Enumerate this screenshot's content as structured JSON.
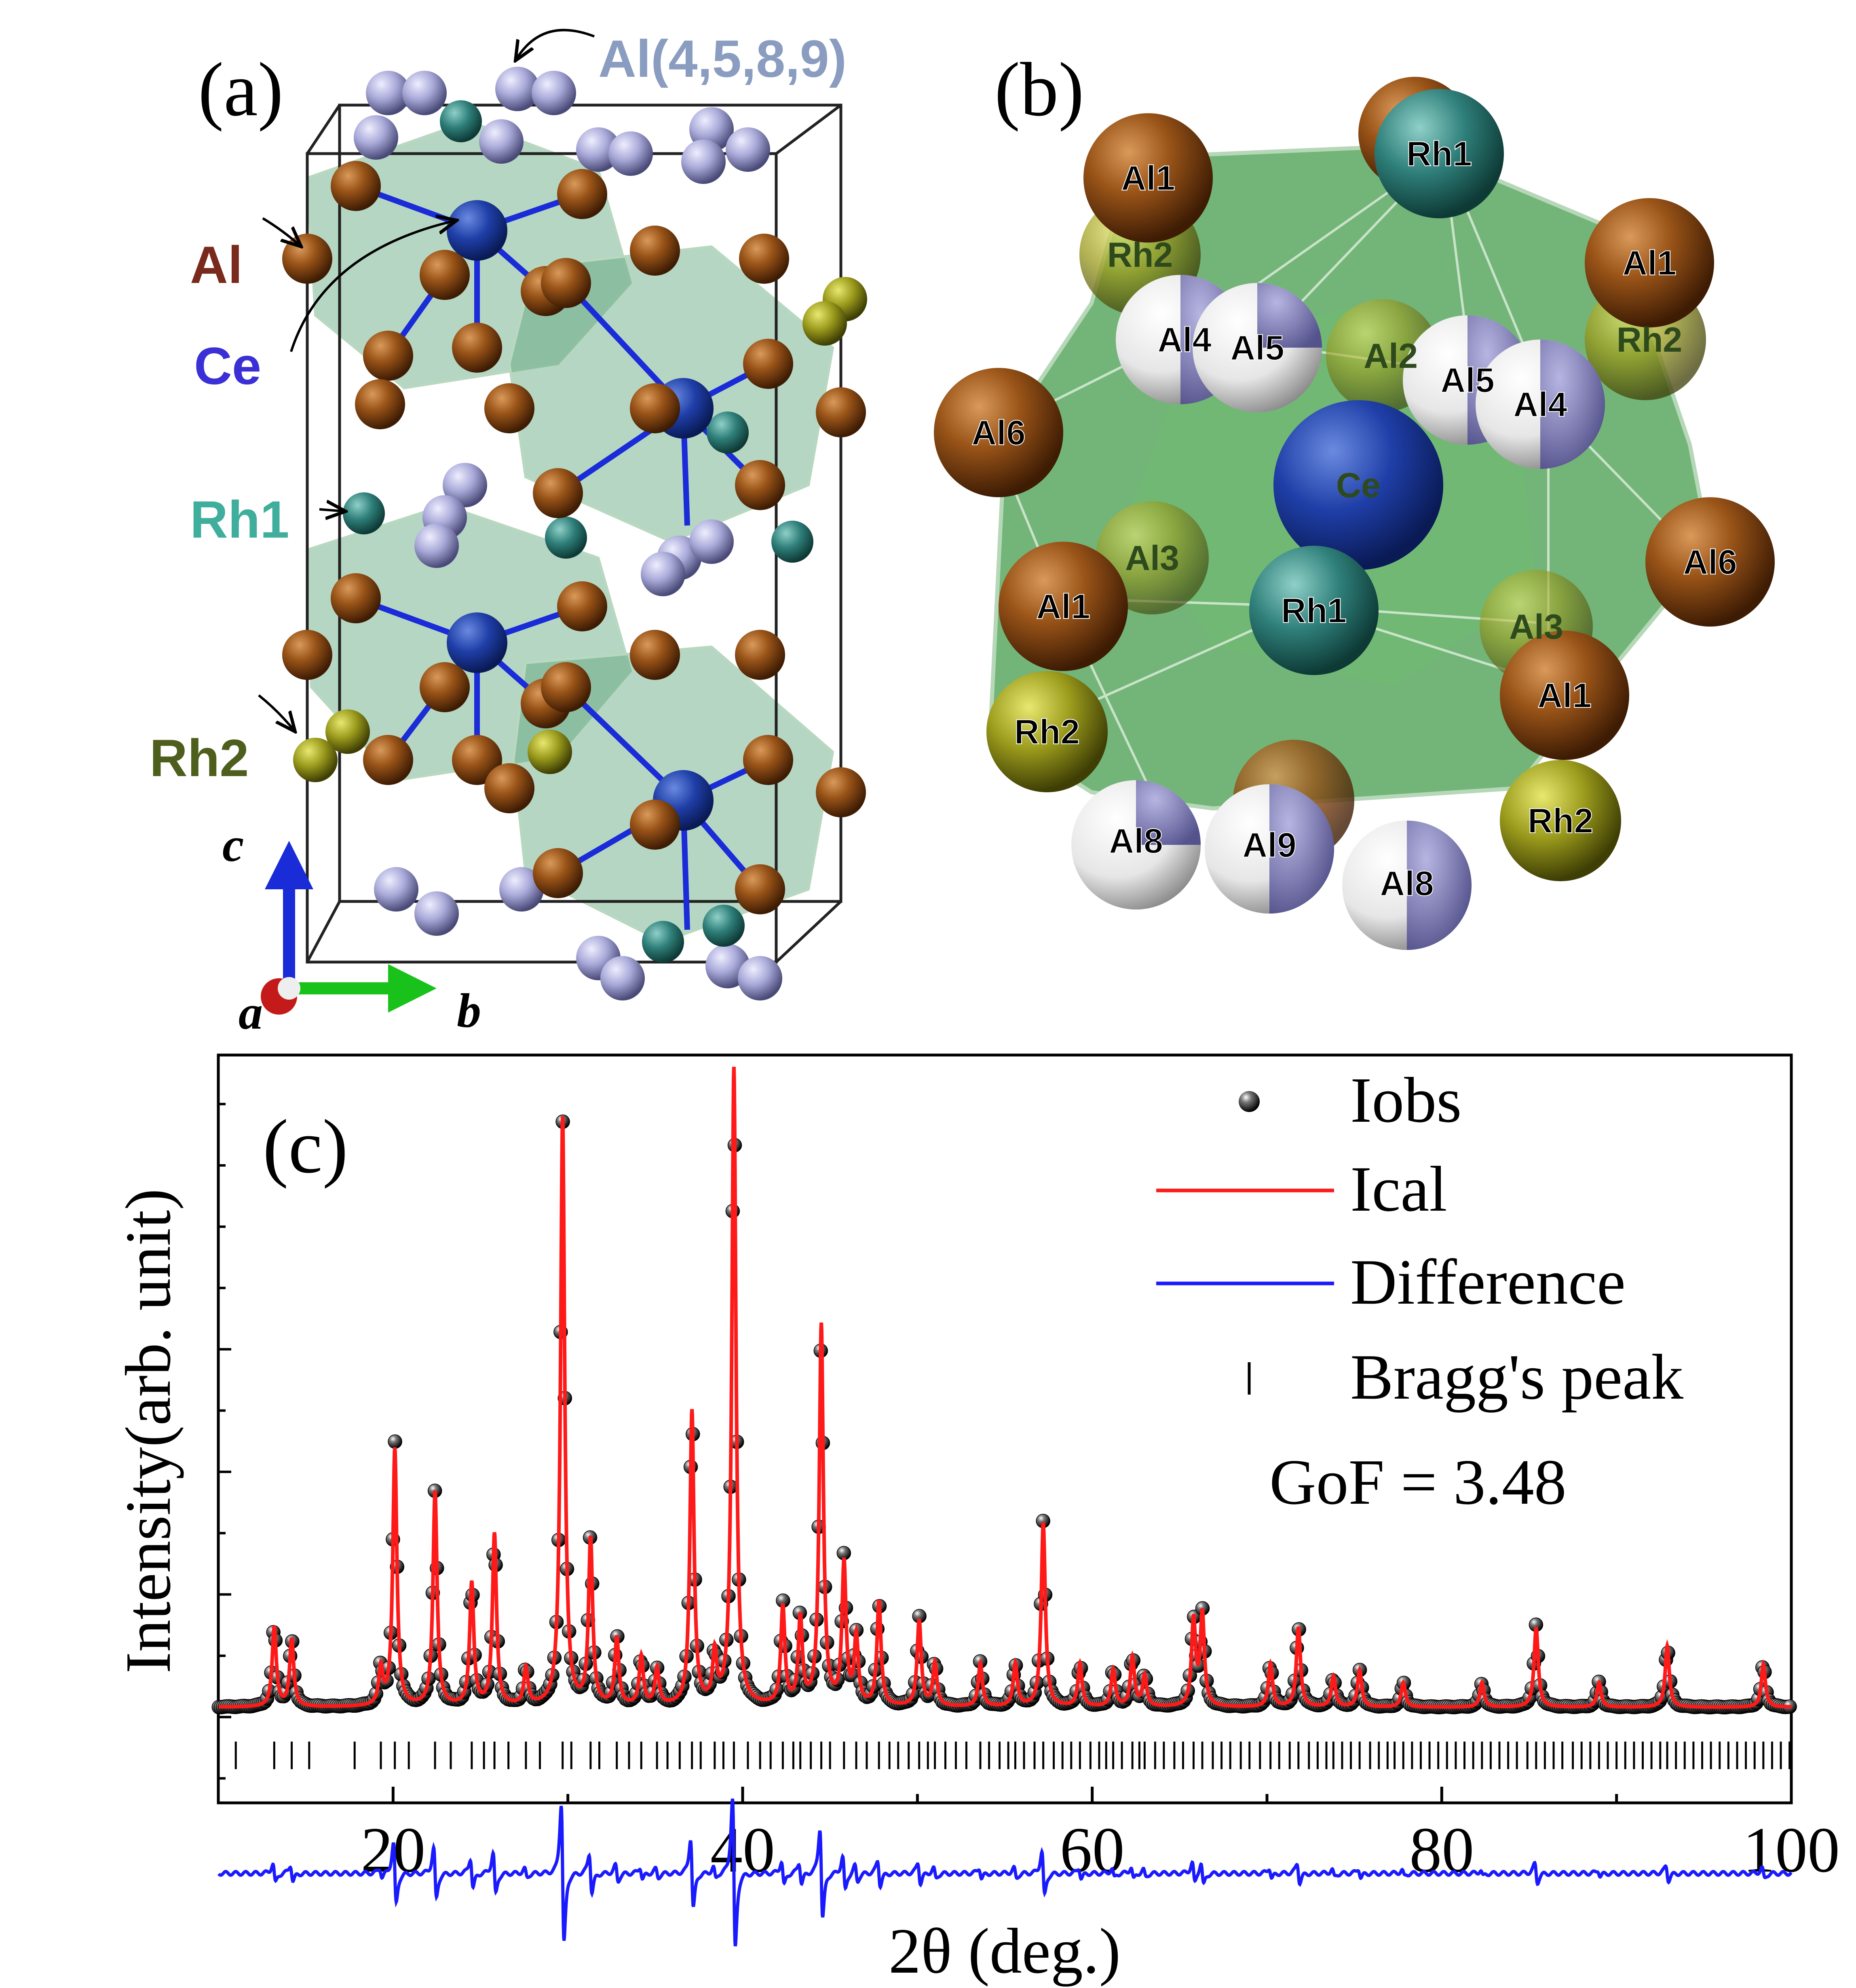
{
  "panel_a": {
    "label": "(a)",
    "species": [
      {
        "key": "al",
        "label": "Al",
        "color": "#7a2a1c"
      },
      {
        "key": "ce",
        "label": "Ce",
        "color": "#3b2fd6"
      },
      {
        "key": "rh1",
        "label": "Rh1",
        "color": "#3fae9c"
      },
      {
        "key": "rh2",
        "label": "Rh2",
        "color": "#4e5e1c"
      },
      {
        "key": "al4589",
        "label": "Al(4,5,8,9)",
        "color": "#8a9cc0"
      }
    ],
    "axes": {
      "c": "c",
      "b": "b",
      "a": "a"
    },
    "colors": {
      "al_atom": "#8b4a14",
      "ce_atom": "#1f3fa8",
      "rh1_atom": "#2f7f7a",
      "rh2_atom": "#9a9a1c",
      "al_mix_atom": "#a8a8d8",
      "polyhedron": "#5aa57a"
    }
  },
  "panel_b": {
    "label": "(b)",
    "atoms": [
      "Al1",
      "Rh1",
      "Rh2",
      "Al1",
      "Al4",
      "Al5",
      "Al2",
      "Al5",
      "Al4",
      "Rh2",
      "Al6",
      "Ce",
      "Al3",
      "Al6",
      "Al1",
      "Rh1",
      "Al3",
      "Al1",
      "Rh2",
      "Al8",
      "Al9",
      "Al8",
      "Rh2"
    ],
    "colors": {
      "al": "#8b4a14",
      "rh1": "#2f7f7a",
      "rh2": "#8f8f1c",
      "ce": "#1f3fa8",
      "mixed_white": "#f2f2f2",
      "mixed_blue": "#7a78b8",
      "cage": "#5aa860"
    }
  },
  "chart_data": {
    "type": "line",
    "panel_label": "(c)",
    "title": "",
    "xlabel": "2θ (deg.)",
    "ylabel": "Intensity(arb. unit)",
    "xlim": [
      10,
      100
    ],
    "ylim": [
      -0.14,
      1.08
    ],
    "x_ticks": [
      20,
      40,
      60,
      80,
      100
    ],
    "legend_position": "top-right",
    "legend": [
      "Iobs",
      "Ical",
      "Difference",
      "Bragg's peak"
    ],
    "annotation": "GoF = 3.48",
    "series": [
      {
        "name": "Iobs",
        "style": "black spheres",
        "color": "#111111"
      },
      {
        "name": "Ical",
        "style": "line",
        "color": "#ff1a1a"
      },
      {
        "name": "Difference",
        "style": "line",
        "color": "#1a1aff",
        "offset": -0.255
      },
      {
        "name": "Bragg's peak",
        "style": "ticks",
        "color": "#000000"
      }
    ],
    "background": 0.016,
    "peaks": [
      {
        "x": 13.2,
        "h": 0.13
      },
      {
        "x": 14.2,
        "h": 0.11
      },
      {
        "x": 19.3,
        "h": 0.06
      },
      {
        "x": 20.1,
        "h": 0.42
      },
      {
        "x": 22.4,
        "h": 0.35
      },
      {
        "x": 24.5,
        "h": 0.2
      },
      {
        "x": 25.8,
        "h": 0.28
      },
      {
        "x": 27.6,
        "h": 0.06
      },
      {
        "x": 29.7,
        "h": 0.96
      },
      {
        "x": 31.3,
        "h": 0.27
      },
      {
        "x": 32.8,
        "h": 0.11
      },
      {
        "x": 34.2,
        "h": 0.08
      },
      {
        "x": 35.1,
        "h": 0.06
      },
      {
        "x": 37.1,
        "h": 0.48
      },
      {
        "x": 38.4,
        "h": 0.08
      },
      {
        "x": 39.5,
        "h": 1.04
      },
      {
        "x": 42.3,
        "h": 0.16
      },
      {
        "x": 43.3,
        "h": 0.14
      },
      {
        "x": 44.5,
        "h": 0.62
      },
      {
        "x": 45.8,
        "h": 0.23
      },
      {
        "x": 46.5,
        "h": 0.11
      },
      {
        "x": 47.8,
        "h": 0.17
      },
      {
        "x": 50.1,
        "h": 0.14
      },
      {
        "x": 51.0,
        "h": 0.07
      },
      {
        "x": 53.6,
        "h": 0.07
      },
      {
        "x": 55.6,
        "h": 0.07
      },
      {
        "x": 57.2,
        "h": 0.3
      },
      {
        "x": 59.3,
        "h": 0.07
      },
      {
        "x": 61.2,
        "h": 0.06
      },
      {
        "x": 62.3,
        "h": 0.08
      },
      {
        "x": 63.0,
        "h": 0.05
      },
      {
        "x": 65.8,
        "h": 0.14
      },
      {
        "x": 66.3,
        "h": 0.15
      },
      {
        "x": 70.2,
        "h": 0.07
      },
      {
        "x": 71.8,
        "h": 0.13
      },
      {
        "x": 73.8,
        "h": 0.05
      },
      {
        "x": 75.3,
        "h": 0.06
      },
      {
        "x": 77.8,
        "h": 0.04
      },
      {
        "x": 82.3,
        "h": 0.04
      },
      {
        "x": 85.4,
        "h": 0.13
      },
      {
        "x": 89.0,
        "h": 0.04
      },
      {
        "x": 92.9,
        "h": 0.1
      },
      {
        "x": 98.4,
        "h": 0.07
      }
    ],
    "bragg_positions": [
      11.0,
      13.2,
      14.2,
      15.2,
      17.8,
      19.3,
      20.1,
      20.9,
      22.4,
      23.3,
      24.5,
      25.2,
      25.8,
      26.6,
      27.6,
      28.4,
      29.7,
      30.2,
      31.3,
      31.8,
      32.8,
      33.5,
      34.2,
      35.1,
      35.7,
      36.4,
      37.1,
      37.6,
      38.4,
      38.9,
      39.5,
      40.3,
      41.0,
      41.6,
      42.3,
      42.9,
      43.3,
      43.9,
      44.5,
      45.0,
      45.8,
      46.5,
      47.1,
      47.8,
      48.4,
      48.9,
      49.5,
      50.1,
      50.6,
      51.0,
      51.6,
      52.2,
      52.8,
      53.6,
      54.1,
      54.7,
      55.2,
      55.6,
      56.1,
      56.7,
      57.2,
      57.8,
      58.3,
      58.8,
      59.3,
      59.9,
      60.4,
      60.8,
      61.2,
      61.7,
      62.3,
      62.7,
      63.0,
      63.6,
      64.1,
      64.7,
      65.2,
      65.8,
      66.3,
      66.9,
      67.4,
      67.9,
      68.5,
      69.0,
      69.6,
      70.2,
      70.7,
      71.3,
      71.8,
      72.4,
      72.9,
      73.4,
      73.8,
      74.3,
      74.8,
      75.3,
      75.9,
      76.4,
      76.9,
      77.3,
      77.8,
      78.3,
      78.8,
      79.3,
      79.8,
      80.3,
      80.8,
      81.3,
      81.8,
      82.3,
      82.8,
      83.3,
      83.8,
      84.3,
      84.9,
      85.4,
      85.9,
      86.4,
      86.9,
      87.5,
      88.0,
      88.5,
      89.0,
      89.5,
      90.0,
      90.5,
      91.0,
      91.5,
      92.0,
      92.5,
      92.9,
      93.4,
      93.9,
      94.4,
      94.9,
      95.4,
      95.9,
      96.4,
      96.9,
      97.4,
      97.9,
      98.4,
      98.9,
      99.4,
      99.9
    ]
  }
}
